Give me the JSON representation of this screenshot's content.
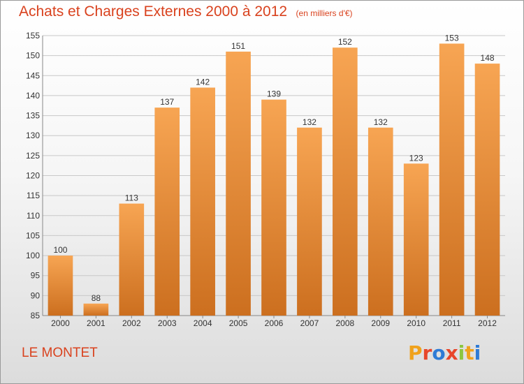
{
  "header": {
    "title": "Achats et Charges Externes 2000 à 2012",
    "subtitle": "(en milliers d'€)"
  },
  "location": "LE MONTET",
  "logo": {
    "letters": [
      "P",
      "r",
      "o",
      "x",
      "i",
      "t",
      "i"
    ],
    "colors": [
      "#f0a21c",
      "#e8462a",
      "#2e7bd6",
      "#e8462a",
      "#8cc63f",
      "#f0a21c",
      "#2e7bd6"
    ]
  },
  "chart_data": {
    "type": "bar",
    "categories": [
      "2000",
      "2001",
      "2002",
      "2003",
      "2004",
      "2005",
      "2006",
      "2007",
      "2008",
      "2009",
      "2010",
      "2011",
      "2012"
    ],
    "values": [
      100,
      88,
      113,
      137,
      142,
      151,
      139,
      132,
      152,
      132,
      123,
      153,
      148
    ],
    "ylim": [
      85,
      155
    ],
    "yticks": [
      85,
      90,
      95,
      100,
      105,
      110,
      115,
      120,
      125,
      130,
      135,
      140,
      145,
      150,
      155
    ],
    "grid": true,
    "colors": {
      "bar_top": "#f7a553",
      "bar_bottom": "#cc6f1f",
      "grid": "#c8c8c8"
    }
  }
}
